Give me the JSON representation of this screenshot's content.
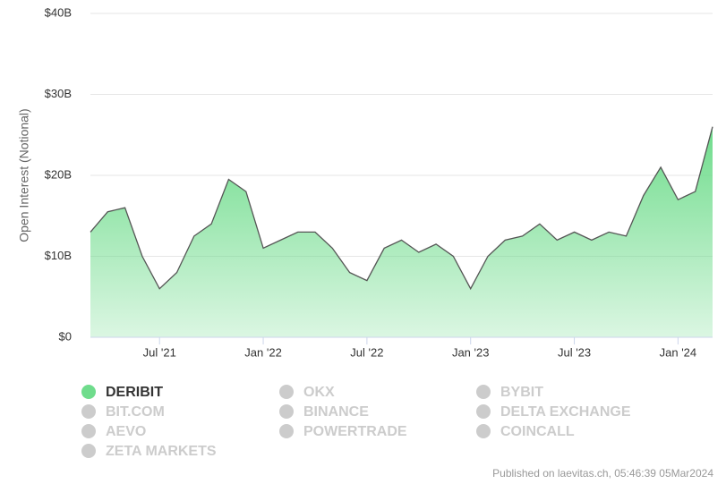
{
  "chart_data": {
    "type": "area",
    "y_label": "Open Interest (Notional)",
    "x": [
      "2021-03",
      "2021-04",
      "2021-05",
      "2021-06",
      "2021-07",
      "2021-08",
      "2021-09",
      "2021-10",
      "2021-11",
      "2021-12",
      "2022-01",
      "2022-02",
      "2022-03",
      "2022-04",
      "2022-05",
      "2022-06",
      "2022-07",
      "2022-08",
      "2022-09",
      "2022-10",
      "2022-11",
      "2022-12",
      "2023-01",
      "2023-02",
      "2023-03",
      "2023-04",
      "2023-05",
      "2023-06",
      "2023-07",
      "2023-08",
      "2023-09",
      "2023-10",
      "2023-11",
      "2023-12",
      "2024-01",
      "2024-02",
      "2024-03"
    ],
    "series": [
      {
        "name": "DERIBIT",
        "color": "#6fdc8c",
        "values": [
          13,
          15.5,
          16,
          10,
          6,
          8,
          12.5,
          14,
          19.5,
          18,
          11,
          12,
          13,
          13,
          11,
          8,
          7,
          11,
          12,
          10.5,
          11.5,
          10,
          6,
          10,
          12,
          12.5,
          14,
          12,
          13,
          12,
          13,
          12.5,
          17.5,
          21,
          17,
          18,
          26
        ]
      }
    ],
    "inactive_series": [
      "OKX",
      "BYBIT",
      "BIT.COM",
      "BINANCE",
      "DELTA EXCHANGE",
      "AEVO",
      "POWERTRADE",
      "COINCALL",
      "ZETA MARKETS"
    ],
    "xlim": [
      "2021-03",
      "2024-03"
    ],
    "xticks": [
      {
        "value": "2021-07",
        "label": "Jul '21"
      },
      {
        "value": "2022-01",
        "label": "Jan '22"
      },
      {
        "value": "2022-07",
        "label": "Jul '22"
      },
      {
        "value": "2023-01",
        "label": "Jan '23"
      },
      {
        "value": "2023-07",
        "label": "Jul '23"
      },
      {
        "value": "2024-01",
        "label": "Jan '24"
      }
    ],
    "ylim": [
      0,
      40
    ],
    "yticks": [
      {
        "value": 0,
        "label": "$0"
      },
      {
        "value": 10,
        "label": "$10B"
      },
      {
        "value": 20,
        "label": "$20B"
      },
      {
        "value": 30,
        "label": "$30B"
      },
      {
        "value": 40,
        "label": "$40B"
      }
    ],
    "grid": true,
    "credits": "Published on laevitas.ch, 05:46:39 05Mar2024"
  }
}
